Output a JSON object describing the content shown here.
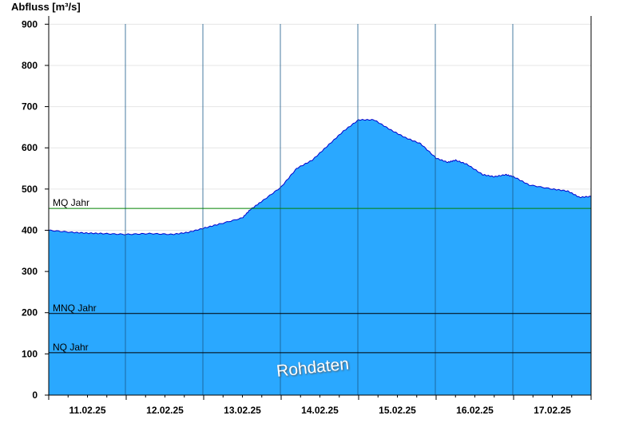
{
  "chart_data": {
    "type": "area",
    "ylabel": "Abfluss [m³/s]",
    "ylim": [
      0,
      920
    ],
    "yticks": [
      0,
      100,
      200,
      300,
      400,
      500,
      600,
      700,
      800,
      900
    ],
    "x_day_labels": [
      "11.02.25",
      "12.02.25",
      "13.02.25",
      "14.02.25",
      "15.02.25",
      "16.02.25",
      "17.02.25"
    ],
    "x_range_days": [
      0,
      7
    ],
    "fill_color": "#2aa8ff",
    "line_color": "#0000cc",
    "series": [
      {
        "x_days": [
          0,
          0.3,
          0.5,
          0.7,
          1.0,
          1.3,
          1.6,
          1.8,
          2.0,
          2.2,
          2.5,
          2.6,
          2.75,
          3.0,
          3.2,
          3.4,
          3.6,
          3.8,
          4.0,
          4.2,
          4.4,
          4.6,
          4.8,
          5.0,
          5.15,
          5.25,
          5.4,
          5.6,
          5.75,
          5.9,
          6.0,
          6.2,
          6.5,
          6.7,
          6.85,
          7.0
        ],
        "y_values": [
          400,
          395,
          393,
          392,
          390,
          392,
          390,
          395,
          405,
          415,
          430,
          450,
          470,
          505,
          550,
          570,
          605,
          640,
          668,
          668,
          645,
          625,
          610,
          575,
          565,
          570,
          560,
          535,
          530,
          535,
          530,
          510,
          500,
          495,
          480,
          482
        ]
      }
    ],
    "reference_lines": [
      {
        "label": "MQ Jahr",
        "value": 453,
        "color": "#008000"
      },
      {
        "label": "MNQ Jahr",
        "value": 198,
        "color": "#000000"
      },
      {
        "label": "NQ Jahr",
        "value": 103,
        "color": "#000000"
      }
    ],
    "watermark": "Rohdaten"
  }
}
